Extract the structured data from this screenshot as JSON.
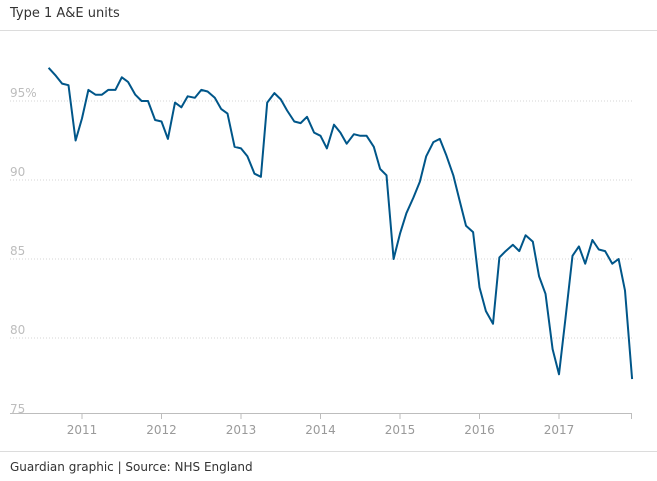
{
  "header": {
    "title": "Type 1 A&E units"
  },
  "footer": {
    "source": "Guardian graphic | Source: NHS England"
  },
  "chart_data": {
    "type": "line",
    "title": "Type 1 A&E units",
    "xlabel": "",
    "ylabel": "",
    "ylim": [
      75,
      98
    ],
    "yticks": [
      95,
      90,
      85,
      80,
      75
    ],
    "ytick_labels": [
      "95%",
      "90",
      "85",
      "80",
      "75"
    ],
    "xticks": [
      2011,
      2012,
      2013,
      2014,
      2015,
      2016,
      2017
    ],
    "xtick_labels": [
      "2011",
      "2012",
      "2013",
      "2014",
      "2015",
      "2016",
      "2017"
    ],
    "grid": "horizontal dotted",
    "line_color": "#005689",
    "series": [
      {
        "x": [
          2010.58,
          2010.67,
          2010.75,
          2010.83,
          2010.92,
          2011.0,
          2011.08,
          2011.17,
          2011.25,
          2011.33,
          2011.42,
          2011.5,
          2011.58,
          2011.67,
          2011.75,
          2011.83,
          2011.92,
          2012.0,
          2012.08,
          2012.17,
          2012.25,
          2012.33,
          2012.42,
          2012.5,
          2012.58,
          2012.67,
          2012.75,
          2012.83,
          2012.92,
          2013.0,
          2013.08,
          2013.17,
          2013.25,
          2013.33,
          2013.42,
          2013.5,
          2013.58,
          2013.67,
          2013.75,
          2013.83,
          2013.92,
          2014.0,
          2014.08,
          2014.17,
          2014.25,
          2014.33,
          2014.42,
          2014.5,
          2014.58,
          2014.67,
          2014.75,
          2014.83,
          2014.92,
          2015.0,
          2015.08,
          2015.17,
          2015.25,
          2015.33,
          2015.42,
          2015.5,
          2015.58,
          2015.67,
          2015.75,
          2015.83,
          2015.92,
          2016.0,
          2016.08,
          2016.17,
          2016.25,
          2016.33,
          2016.42,
          2016.5,
          2016.58,
          2016.67,
          2016.75,
          2016.83,
          2016.92,
          2017.0,
          2017.08,
          2017.17,
          2017.25,
          2017.33,
          2017.42,
          2017.5,
          2017.58,
          2017.67,
          2017.75,
          2017.83,
          2017.92
        ],
        "y": [
          97.1,
          96.6,
          96.1,
          96.0,
          92.5,
          93.9,
          95.7,
          95.4,
          95.4,
          95.7,
          95.7,
          96.5,
          96.2,
          95.4,
          95.0,
          95.0,
          93.8,
          93.7,
          92.6,
          94.9,
          94.6,
          95.3,
          95.2,
          95.7,
          95.6,
          95.2,
          94.5,
          94.2,
          92.1,
          92.0,
          91.5,
          90.4,
          90.2,
          94.9,
          95.5,
          95.1,
          94.4,
          93.7,
          93.6,
          94.0,
          93.0,
          92.8,
          92.0,
          93.5,
          93.0,
          92.3,
          92.9,
          92.8,
          92.8,
          92.1,
          90.7,
          90.3,
          85.0,
          86.6,
          87.9,
          88.9,
          89.9,
          91.5,
          92.4,
          92.6,
          91.6,
          90.3,
          88.7,
          87.1,
          86.7,
          83.2,
          81.7,
          80.9,
          85.1,
          85.5,
          85.9,
          85.5,
          86.5,
          86.1,
          83.9,
          82.8,
          79.3,
          77.7,
          81.2,
          85.2,
          85.8,
          84.7,
          86.2,
          85.6,
          85.5,
          84.7,
          85.0,
          83.0,
          77.4
        ]
      }
    ]
  }
}
